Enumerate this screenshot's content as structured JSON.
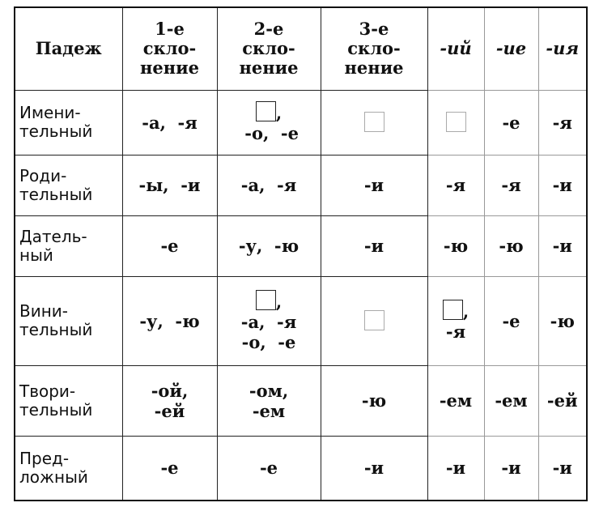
{
  "columns": [
    {
      "lines": [
        "Падеж"
      ]
    },
    {
      "lines": [
        "1-е",
        "скло-",
        "нение"
      ]
    },
    {
      "lines": [
        "2-е",
        "скло-",
        "нение"
      ]
    },
    {
      "lines": [
        "3-е",
        "скло-",
        "нение"
      ]
    },
    {
      "lines": [
        "-ий"
      ],
      "italic": true
    },
    {
      "lines": [
        "-ие"
      ],
      "italic": true
    },
    {
      "lines": [
        "-ия"
      ],
      "italic": true
    }
  ],
  "rows": [
    {
      "case": [
        "Имени-",
        "тельный"
      ],
      "cells": [
        [
          "-а,  -я"
        ],
        [
          "[box],",
          " -о,  -е"
        ],
        [
          "[box-light]"
        ],
        [
          "[box-light]"
        ],
        [
          "-е"
        ],
        [
          "-я"
        ]
      ]
    },
    {
      "case": [
        "Роди-",
        "тельный"
      ],
      "cells": [
        [
          "-ы,  -и"
        ],
        [
          "-а,  -я"
        ],
        [
          "-и"
        ],
        [
          "-я"
        ],
        [
          "-я"
        ],
        [
          "-и"
        ]
      ]
    },
    {
      "case": [
        "Датель-",
        "ный"
      ],
      "cells": [
        [
          "-е"
        ],
        [
          "-у,  -ю"
        ],
        [
          "-и"
        ],
        [
          "-ю"
        ],
        [
          "-ю"
        ],
        [
          "-и"
        ]
      ]
    },
    {
      "case": [
        "Вини-",
        "тельный"
      ],
      "cells": [
        [
          "-у,  -ю"
        ],
        [
          "[box],",
          "-а,  -я",
          "-о,  -е"
        ],
        [
          "[box-light]"
        ],
        [
          "[box],",
          "-я"
        ],
        [
          "-е"
        ],
        [
          "-ю"
        ]
      ]
    },
    {
      "case": [
        "Твори-",
        "тельный"
      ],
      "cells": [
        [
          "-ой,",
          "-ей"
        ],
        [
          "-ом,",
          "-ем"
        ],
        [
          "-ю"
        ],
        [
          "-ем"
        ],
        [
          "-ем"
        ],
        [
          "-ей"
        ]
      ]
    },
    {
      "case": [
        "Пред-",
        "ложный"
      ],
      "cells": [
        [
          "-е"
        ],
        [
          "-е"
        ],
        [
          "-и"
        ],
        [
          "-и"
        ],
        [
          "-и"
        ],
        [
          "-и"
        ]
      ]
    }
  ]
}
